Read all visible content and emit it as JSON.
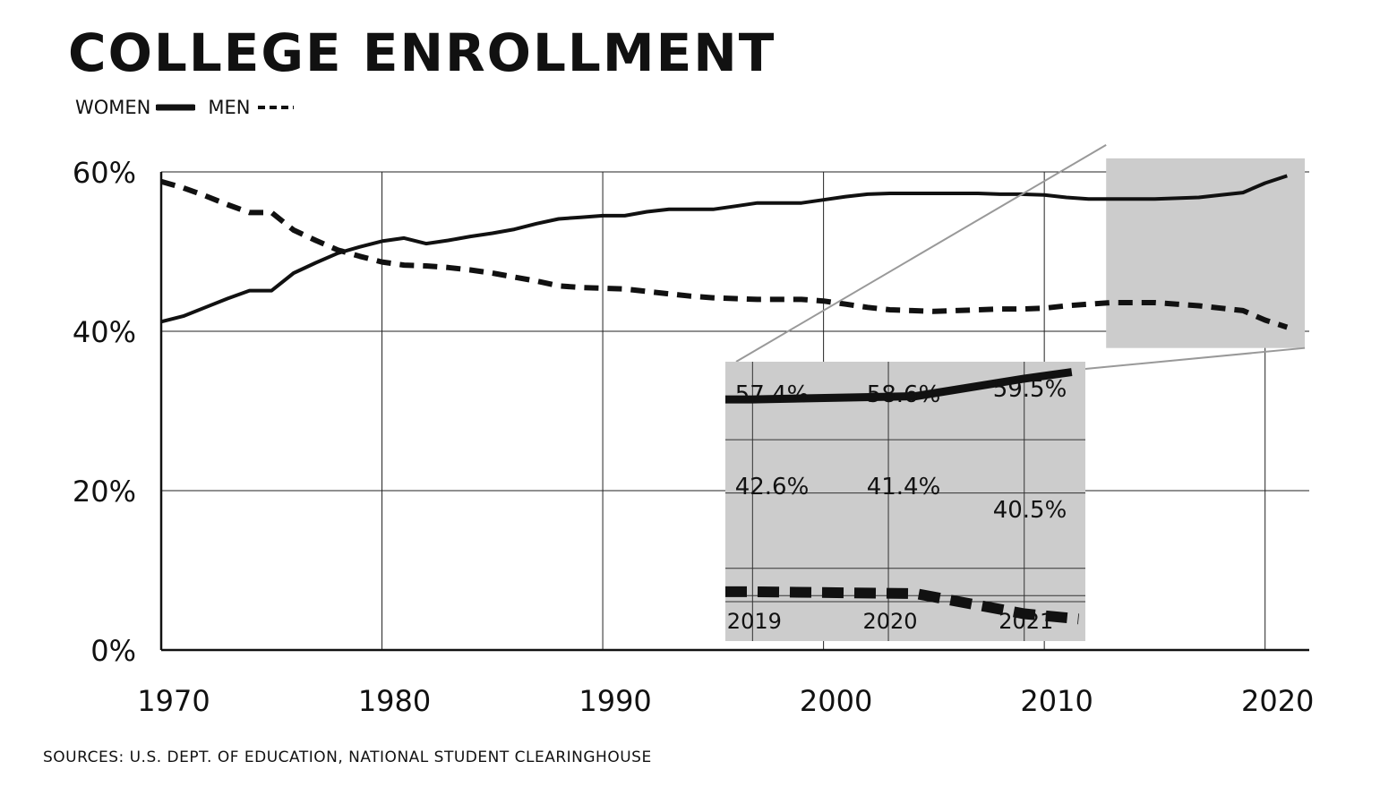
{
  "title": "COLLEGE ENROLLMENT",
  "legend": {
    "women": "WOMEN",
    "men": "MEN"
  },
  "source": "SOURCES: U.S. DEPT. OF EDUCATION, NATIONAL STUDENT CLEARINGHOUSE",
  "colors": {
    "line": "#111111",
    "inset_bg": "#cccccc",
    "connector": "#999999"
  },
  "chart_data": {
    "type": "line",
    "title": "COLLEGE ENROLLMENT",
    "xlim": [
      1970,
      2022
    ],
    "ylim": [
      0,
      60
    ],
    "x_ticks": [
      1970,
      1980,
      1990,
      2000,
      2010,
      2020
    ],
    "y_ticks": [
      0,
      20,
      40,
      60
    ],
    "y_tick_labels": [
      "0%",
      "20%",
      "40%",
      "60%"
    ],
    "grid": true,
    "legend_placement": "top-left",
    "series": [
      {
        "name": "WOMEN",
        "style": "solid",
        "x": [
          1970,
          1971,
          1972,
          1973,
          1974,
          1975,
          1976,
          1977,
          1978,
          1979,
          1980,
          1981,
          1982,
          1983,
          1984,
          1985,
          1986,
          1987,
          1988,
          1989,
          1990,
          1991,
          1992,
          1993,
          1994,
          1995,
          1996,
          1997,
          1998,
          1999,
          2000,
          2001,
          2002,
          2003,
          2004,
          2005,
          2006,
          2007,
          2008,
          2009,
          2010,
          2011,
          2012,
          2013,
          2014,
          2015,
          2016,
          2017,
          2018,
          2019,
          2020,
          2021
        ],
        "y": [
          41.2,
          41.9,
          43.0,
          44.1,
          45.1,
          45.1,
          47.3,
          48.6,
          49.8,
          50.6,
          51.3,
          51.7,
          51.0,
          51.4,
          51.9,
          52.3,
          52.8,
          53.5,
          54.1,
          54.3,
          54.5,
          54.5,
          55.0,
          55.3,
          55.3,
          55.3,
          55.7,
          56.1,
          56.1,
          56.1,
          56.5,
          56.9,
          57.2,
          57.3,
          57.3,
          57.3,
          57.3,
          57.3,
          57.2,
          57.2,
          57.1,
          56.8,
          56.6,
          56.6,
          56.6,
          56.6,
          56.7,
          56.8,
          57.1,
          57.4,
          58.6,
          59.5
        ]
      },
      {
        "name": "MEN",
        "style": "dashed",
        "x": [
          1970,
          1971,
          1972,
          1973,
          1974,
          1975,
          1976,
          1977,
          1978,
          1979,
          1980,
          1981,
          1982,
          1983,
          1984,
          1985,
          1986,
          1987,
          1988,
          1989,
          1990,
          1991,
          1992,
          1993,
          1994,
          1995,
          1996,
          1997,
          1998,
          1999,
          2000,
          2001,
          2002,
          2003,
          2004,
          2005,
          2006,
          2007,
          2008,
          2009,
          2010,
          2011,
          2012,
          2013,
          2014,
          2015,
          2016,
          2017,
          2018,
          2019,
          2020,
          2021
        ],
        "y": [
          58.8,
          58.0,
          57.0,
          55.9,
          54.9,
          54.9,
          52.7,
          51.4,
          50.2,
          49.4,
          48.7,
          48.3,
          48.2,
          48.0,
          47.7,
          47.3,
          46.8,
          46.3,
          45.7,
          45.5,
          45.4,
          45.3,
          45.0,
          44.7,
          44.4,
          44.2,
          44.1,
          44.0,
          44.0,
          44.0,
          43.8,
          43.4,
          43.0,
          42.7,
          42.6,
          42.5,
          42.6,
          42.7,
          42.8,
          42.8,
          42.9,
          43.2,
          43.4,
          43.6,
          43.6,
          43.6,
          43.4,
          43.2,
          42.9,
          42.6,
          41.4,
          40.5
        ]
      }
    ],
    "inset": {
      "x": [
        2019,
        2020,
        2021
      ],
      "x_tick_labels": [
        "2019",
        "2020",
        "2021"
      ],
      "women_labels": [
        "57.4%",
        "58.6%",
        "59.5%"
      ],
      "men_labels": [
        "42.6%",
        "41.4%",
        "40.5%"
      ]
    }
  }
}
